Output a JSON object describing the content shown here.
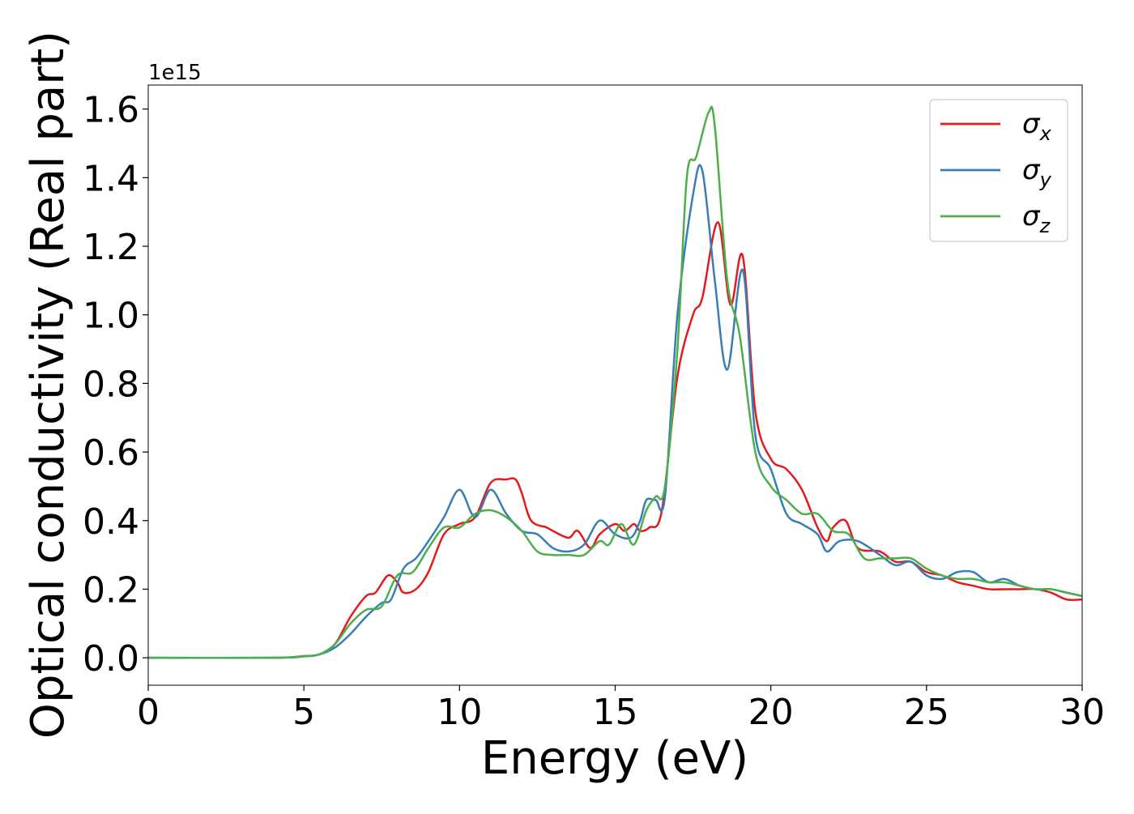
{
  "chart_data": {
    "type": "line",
    "title": "",
    "xlabel": "Energy (eV)",
    "ylabel": "Optical conductivity (Real part)",
    "y_offset_label": "1e15",
    "y_scale": 1000000000000000.0,
    "xlim": [
      0,
      30
    ],
    "ylim": [
      -0.08,
      1.67
    ],
    "x_ticks": [
      0,
      5,
      10,
      15,
      20,
      25,
      30
    ],
    "x_tick_labels": [
      "0",
      "5",
      "10",
      "15",
      "20",
      "25",
      "30"
    ],
    "y_ticks": [
      0.0,
      0.2,
      0.4,
      0.6,
      0.8,
      1.0,
      1.2,
      1.4,
      1.6
    ],
    "y_tick_labels": [
      "0.0",
      "0.2",
      "0.4",
      "0.6",
      "0.8",
      "1.0",
      "1.2",
      "1.4",
      "1.6"
    ],
    "grid": false,
    "legend_position": "top-right",
    "series": [
      {
        "name": "σx",
        "legend_symbol": "σ",
        "legend_sub": "x",
        "color": "#e41a1c",
        "x": [
          0,
          4,
          5,
          5.5,
          6,
          6.5,
          7,
          7.3,
          7.7,
          8,
          8.2,
          8.6,
          9,
          9.5,
          10,
          10.5,
          11,
          11.5,
          11.8,
          12,
          12.3,
          12.8,
          13,
          13.5,
          13.8,
          14.2,
          14.5,
          15,
          15.3,
          15.6,
          15.8,
          16.1,
          16.5,
          17,
          17.5,
          17.8,
          18.3,
          18.7,
          19.1,
          19.5,
          20,
          20.5,
          21,
          21.5,
          21.8,
          22,
          22.4,
          22.8,
          23.5,
          24,
          24.5,
          25,
          25.5,
          26,
          26.5,
          27,
          27.5,
          28,
          28.5,
          29,
          29.5,
          30
        ],
        "y": [
          0.0,
          0.0,
          0.005,
          0.01,
          0.04,
          0.12,
          0.18,
          0.19,
          0.24,
          0.22,
          0.19,
          0.2,
          0.25,
          0.36,
          0.39,
          0.41,
          0.51,
          0.52,
          0.52,
          0.48,
          0.4,
          0.38,
          0.37,
          0.35,
          0.37,
          0.32,
          0.36,
          0.39,
          0.37,
          0.39,
          0.37,
          0.38,
          0.43,
          0.82,
          1.0,
          1.05,
          1.27,
          1.03,
          1.17,
          0.72,
          0.58,
          0.55,
          0.49,
          0.38,
          0.34,
          0.38,
          0.4,
          0.32,
          0.31,
          0.28,
          0.28,
          0.25,
          0.24,
          0.22,
          0.21,
          0.2,
          0.2,
          0.2,
          0.2,
          0.19,
          0.17,
          0.17
        ]
      },
      {
        "name": "σy",
        "legend_symbol": "σ",
        "legend_sub": "y",
        "color": "#377eb8",
        "x": [
          0,
          4,
          5,
          5.5,
          6,
          6.5,
          7,
          7.5,
          7.8,
          8.2,
          8.6,
          9,
          9.5,
          10,
          10.5,
          11,
          11.5,
          12,
          12.5,
          13,
          13.5,
          14,
          14.5,
          15,
          15.5,
          15.8,
          16,
          16.3,
          16.6,
          17,
          17.5,
          17.8,
          18.2,
          18.6,
          19.1,
          19.5,
          20,
          20.5,
          21,
          21.5,
          21.8,
          22.2,
          22.8,
          23.5,
          24,
          24.5,
          25,
          25.5,
          26,
          26.5,
          27,
          27.5,
          28,
          28.5,
          29,
          29.5,
          30
        ],
        "y": [
          0.0,
          0.0,
          0.004,
          0.01,
          0.03,
          0.07,
          0.12,
          0.16,
          0.17,
          0.26,
          0.29,
          0.34,
          0.41,
          0.49,
          0.41,
          0.49,
          0.42,
          0.37,
          0.36,
          0.32,
          0.31,
          0.33,
          0.4,
          0.36,
          0.35,
          0.4,
          0.46,
          0.46,
          0.47,
          1.0,
          1.35,
          1.42,
          1.1,
          0.84,
          1.13,
          0.65,
          0.55,
          0.42,
          0.39,
          0.36,
          0.31,
          0.34,
          0.34,
          0.3,
          0.27,
          0.28,
          0.24,
          0.23,
          0.25,
          0.25,
          0.22,
          0.23,
          0.21,
          0.2,
          0.2,
          0.19,
          0.18
        ]
      },
      {
        "name": "σz",
        "legend_symbol": "σ",
        "legend_sub": "z",
        "color": "#4daf4a",
        "x": [
          0,
          4,
          5,
          5.5,
          6,
          6.5,
          7,
          7.5,
          8,
          8.5,
          9,
          9.5,
          10,
          10.5,
          11,
          11.5,
          12,
          12.5,
          13,
          13.5,
          14,
          14.5,
          14.8,
          15.2,
          15.6,
          16,
          16.3,
          16.6,
          17,
          17.3,
          17.6,
          18,
          18.2,
          18.6,
          19,
          19.5,
          20,
          20.5,
          21,
          21.5,
          22,
          22.5,
          23,
          23.5,
          24,
          24.5,
          25,
          25.5,
          26,
          26.5,
          27,
          27.5,
          28,
          28.5,
          29,
          29.5,
          30
        ],
        "y": [
          0.0,
          0.0,
          0.004,
          0.01,
          0.04,
          0.1,
          0.14,
          0.15,
          0.24,
          0.25,
          0.32,
          0.38,
          0.38,
          0.42,
          0.43,
          0.41,
          0.37,
          0.31,
          0.3,
          0.3,
          0.3,
          0.34,
          0.33,
          0.39,
          0.33,
          0.43,
          0.47,
          0.5,
          0.9,
          1.4,
          1.46,
          1.59,
          1.55,
          1.1,
          0.94,
          0.6,
          0.5,
          0.46,
          0.42,
          0.42,
          0.37,
          0.36,
          0.29,
          0.29,
          0.29,
          0.29,
          0.26,
          0.24,
          0.23,
          0.23,
          0.22,
          0.22,
          0.21,
          0.2,
          0.2,
          0.19,
          0.18
        ]
      }
    ]
  }
}
